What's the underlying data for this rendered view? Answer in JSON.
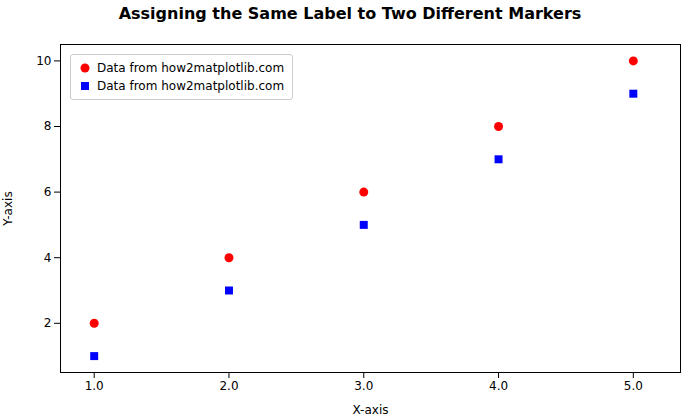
{
  "chart_data": {
    "type": "scatter",
    "title": "Assigning the Same Label to Two Different Markers",
    "xlabel": "X-axis",
    "ylabel": "Y-axis",
    "x": [
      1,
      2,
      3,
      4,
      5
    ],
    "series": [
      {
        "name": "Data from how2matplotlib.com",
        "color": "red",
        "marker": "circle",
        "values": [
          2,
          4,
          6,
          8,
          10
        ]
      },
      {
        "name": "Data from how2matplotlib.com",
        "color": "blue",
        "marker": "square",
        "values": [
          1,
          3,
          5,
          7,
          9
        ]
      }
    ],
    "xlim": [
      0.75,
      5.35
    ],
    "ylim": [
      0.5,
      10.5
    ],
    "xticks": [
      1,
      2,
      3,
      4,
      5
    ],
    "yticks": [
      2,
      4,
      6,
      8,
      10
    ],
    "grid": false,
    "legend": "upper left"
  }
}
